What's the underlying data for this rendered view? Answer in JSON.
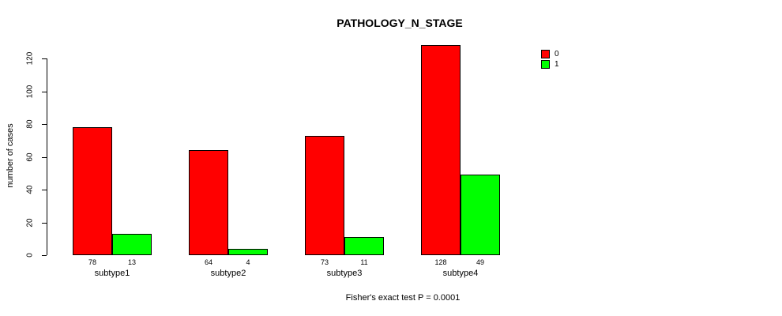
{
  "chart_data": {
    "type": "bar",
    "title": "PATHOLOGY_N_STAGE",
    "xlabel": "",
    "ylabel": "number of cases",
    "categories": [
      "subtype1",
      "subtype2",
      "subtype3",
      "subtype4"
    ],
    "series": [
      {
        "name": "0",
        "color": "#FF0000",
        "values": [
          78,
          64,
          73,
          128
        ]
      },
      {
        "name": "1",
        "color": "#00FF00",
        "values": [
          13,
          4,
          11,
          49
        ]
      }
    ],
    "yticks": [
      0,
      20,
      40,
      60,
      80,
      100,
      120
    ],
    "ylim": [
      0,
      120
    ],
    "grid": false,
    "legend_position": "top-right",
    "legend_entries": [
      {
        "label": "0",
        "color": "#FF0000"
      },
      {
        "label": "1",
        "color": "#00FF00"
      }
    ],
    "bar_value_labels": [
      [
        78,
        13
      ],
      [
        64,
        4
      ],
      [
        73,
        11
      ],
      [
        128,
        49
      ]
    ],
    "annotation": "Fisher's exact test P = 0.0001"
  }
}
